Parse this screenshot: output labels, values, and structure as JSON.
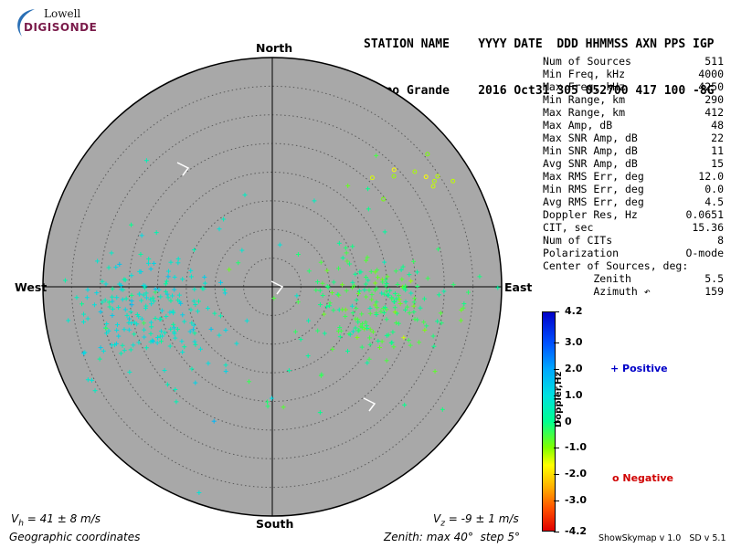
{
  "logo": {
    "line1": "Lowell",
    "line2": "DIGISONDE"
  },
  "header": {
    "line1": "STATION NAME    YYYY DATE  DDD HHMMSS AXN PPS IGP",
    "line2": "Campo Grande    2016 Oct31 305 052700 417 100 -8G"
  },
  "compass": {
    "north": "North",
    "south": "South",
    "west": "West",
    "east": "East"
  },
  "stats": [
    {
      "label": "Num of Sources",
      "value": "511"
    },
    {
      "label": "Min Freq, kHz",
      "value": "4000"
    },
    {
      "label": "Max Freq, kHz",
      "value": "4250"
    },
    {
      "label": "Min Range, km",
      "value": "290"
    },
    {
      "label": "Max Range, km",
      "value": "412"
    },
    {
      "label": "Max Amp, dB",
      "value": "48"
    },
    {
      "label": "Max SNR Amp, dB",
      "value": "22"
    },
    {
      "label": "Min SNR Amp, dB",
      "value": "11"
    },
    {
      "label": "Avg SNR Amp, dB",
      "value": "15"
    },
    {
      "label": "Max RMS Err, deg",
      "value": "12.0"
    },
    {
      "label": "Min RMS Err, deg",
      "value": "0.0"
    },
    {
      "label": "Avg RMS Err, deg",
      "value": "4.5"
    },
    {
      "label": "Doppler Res, Hz",
      "value": "0.0651"
    },
    {
      "label": "CIT, sec",
      "value": "15.36"
    },
    {
      "label": "Num of CITs",
      "value": "8"
    },
    {
      "label": "Polarization",
      "value": "O-mode"
    },
    {
      "label": "Center of Sources, deg:",
      "value": ""
    },
    {
      "label": "        Zenith",
      "value": "5.5"
    },
    {
      "label": "        Azimuth ↶",
      "value": "159"
    }
  ],
  "colorbar": {
    "label": "Doppler,Hz",
    "ticks": [
      "4.2",
      "3.0",
      "2.0",
      "1.0",
      "0",
      "-1.0",
      "-2.0",
      "-3.0",
      "-4.2"
    ],
    "tick_values": [
      4.2,
      3.0,
      2.0,
      1.0,
      0,
      -1.0,
      -2.0,
      -3.0,
      -4.2
    ],
    "range": [
      -4.2,
      4.2
    ]
  },
  "legend": {
    "positive": "+ Positive",
    "negative": "o Negative"
  },
  "footer": {
    "vh": "V",
    "vh_sub": "h",
    "vh_rest": " = 41 ± 8 m/s",
    "vz": "V",
    "vz_sub": "z",
    "vz_rest": " = -9 ± 1 m/s",
    "coords": "Geographic coordinates",
    "zenith": "Zenith: max 40°  step 5°",
    "version": "ShowSkymap v 1.0   SD v 5.1"
  },
  "skymap": {
    "max_zenith_deg": 40,
    "step_deg": 5,
    "colors": {
      "background": "#a8a8a8",
      "ring": "#5a5a5a",
      "border": "#000000"
    },
    "clusters": [
      {
        "name": "west",
        "center_zenith_deg": 22,
        "azimuth_deg": 260,
        "spread_deg": 6,
        "doppler": 0.8,
        "count": 230,
        "symbol": "+"
      },
      {
        "name": "east",
        "center_zenith_deg": 18,
        "azimuth_deg": 100,
        "spread_deg": 6,
        "doppler": -0.3,
        "count": 230,
        "symbol": "+"
      },
      {
        "name": "northeast-negative",
        "center_zenith_deg": 33,
        "azimuth_deg": 55,
        "spread_deg": 4,
        "doppler": -1.3,
        "count": 14,
        "symbol": "o"
      }
    ],
    "sources_total": 511
  }
}
